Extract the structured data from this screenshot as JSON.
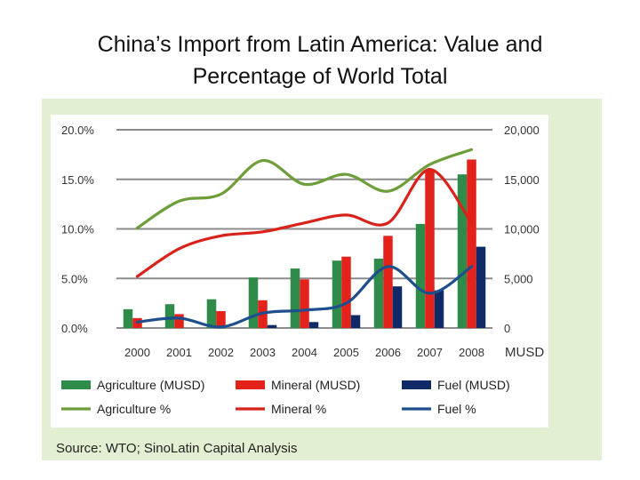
{
  "slide": {
    "title_line1": "China’s Import from Latin America: Value and",
    "title_line2": "Percentage of World Total"
  },
  "source": "Source: WTO; SinoLatin Capital Analysis",
  "colors": {
    "agriculture": "#2e8b4a",
    "mineral": "#e3231b",
    "fuel": "#0f2a66",
    "agriculture_line": "#6e9e3a",
    "mineral_line": "#d9221a",
    "fuel_line": "#1f4e8c",
    "panel": "#e3efd3",
    "grid": "#8c8c8c"
  },
  "chart_data": {
    "type": "bar",
    "title": "",
    "categories": [
      "2000",
      "2001",
      "2002",
      "2003",
      "2004",
      "2005",
      "2006",
      "2007",
      "2008"
    ],
    "xlabel": "",
    "y_left": {
      "label": "",
      "range": [
        0,
        20
      ],
      "ticks": [
        0,
        5,
        10,
        15,
        20
      ],
      "tick_labels": [
        "0.0%",
        "5.0%",
        "10.0%",
        "15.0%",
        "20.0%"
      ]
    },
    "y_right": {
      "label": "MUSD",
      "range": [
        0,
        20000
      ],
      "ticks": [
        0,
        5000,
        10000,
        15000,
        20000
      ],
      "tick_labels": [
        "0",
        "5,000",
        "10,000",
        "15,000",
        "20,000"
      ]
    },
    "bar_series": [
      {
        "name": "Agriculture (MUSD)",
        "key": "agriculture",
        "values": [
          1900,
          2400,
          2900,
          5100,
          6000,
          6800,
          7000,
          10500,
          15500
        ]
      },
      {
        "name": "Mineral (MUSD)",
        "key": "mineral",
        "values": [
          1000,
          1400,
          1700,
          2800,
          4900,
          7200,
          9300,
          16000,
          17000
        ]
      },
      {
        "name": "Fuel (MUSD)",
        "key": "fuel",
        "values": [
          0,
          0,
          0,
          300,
          600,
          1300,
          4200,
          3800,
          8200
        ]
      }
    ],
    "line_series": [
      {
        "name": "Agriculture %",
        "key": "agriculture_line",
        "values": [
          10.1,
          12.8,
          13.5,
          16.9,
          14.5,
          15.5,
          13.8,
          16.5,
          18.0
        ]
      },
      {
        "name": "Mineral %",
        "key": "mineral_line",
        "values": [
          5.2,
          8.0,
          9.3,
          9.7,
          10.6,
          11.4,
          10.6,
          16.0,
          10.6
        ]
      },
      {
        "name": "Fuel %",
        "key": "fuel_line",
        "values": [
          0.6,
          1.0,
          0.1,
          1.5,
          1.8,
          2.5,
          6.2,
          3.5,
          6.2
        ]
      }
    ],
    "legend": [
      [
        "Agriculture (MUSD)",
        "Mineral (MUSD)",
        "Fuel (MUSD)"
      ],
      [
        "Agriculture %",
        "Mineral %",
        "Fuel %"
      ]
    ],
    "legend_position": "bottom",
    "grid": true
  }
}
